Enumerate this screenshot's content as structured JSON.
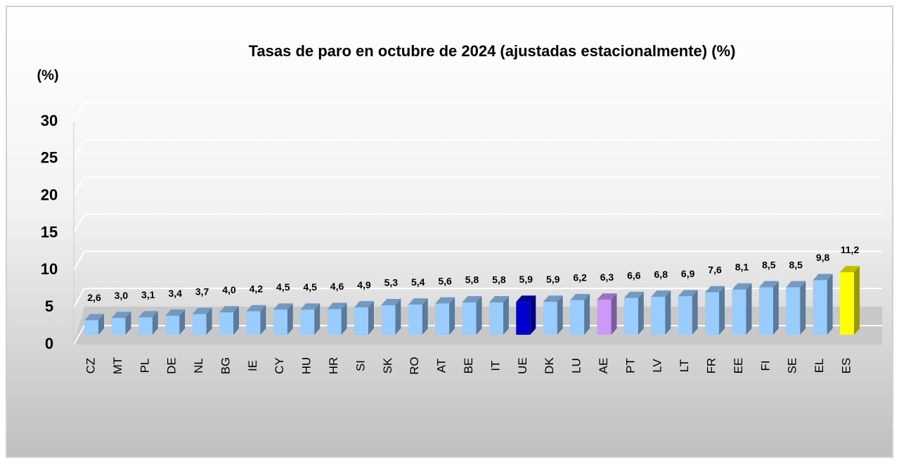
{
  "chart_data": {
    "type": "bar3d",
    "title": "Tasas de paro en octubre de 2024  (ajustadas estacionalmente) (%)",
    "y_label": "(%)",
    "categories": [
      "CZ",
      "MT",
      "PL",
      "DE",
      "NL",
      "BG",
      "IE",
      "CY",
      "HU",
      "HR",
      "SI",
      "SK",
      "RO",
      "AT",
      "BE",
      "IT",
      "UE",
      "DK",
      "LU",
      "AE",
      "PT",
      "LV",
      "LT",
      "FR",
      "EE",
      "FI",
      "SE",
      "EL",
      "ES"
    ],
    "values": [
      2.6,
      3.0,
      3.1,
      3.4,
      3.7,
      4.0,
      4.2,
      4.5,
      4.5,
      4.6,
      4.9,
      5.3,
      5.4,
      5.6,
      5.8,
      5.8,
      5.9,
      5.9,
      6.2,
      6.3,
      6.6,
      6.8,
      6.9,
      7.6,
      8.1,
      8.5,
      8.5,
      9.8,
      11.2
    ],
    "value_labels": [
      "2,6",
      "3,0",
      "3,1",
      "3,4",
      "3,7",
      "4,0",
      "4,2",
      "4,5",
      "4,5",
      "4,6",
      "4,9",
      "5,3",
      "5,4",
      "5,6",
      "5,8",
      "5,8",
      "5,9",
      "5,9",
      "6,2",
      "6,3",
      "6,6",
      "6,8",
      "6,9",
      "7,6",
      "8,1",
      "8,5",
      "8,5",
      "9,8",
      "11,2"
    ],
    "colors": [
      "#99ccff",
      "#99ccff",
      "#99ccff",
      "#99ccff",
      "#99ccff",
      "#99ccff",
      "#99ccff",
      "#99ccff",
      "#99ccff",
      "#99ccff",
      "#99ccff",
      "#99ccff",
      "#99ccff",
      "#99ccff",
      "#99ccff",
      "#99ccff",
      "#0000cc",
      "#99ccff",
      "#99ccff",
      "#cc99ff",
      "#99ccff",
      "#99ccff",
      "#99ccff",
      "#99ccff",
      "#99ccff",
      "#99ccff",
      "#99ccff",
      "#99ccff",
      "#ffff00"
    ],
    "ylim": [
      0,
      30
    ],
    "yticks": [
      0,
      5,
      10,
      15,
      20,
      25,
      30
    ],
    "grid": true
  }
}
